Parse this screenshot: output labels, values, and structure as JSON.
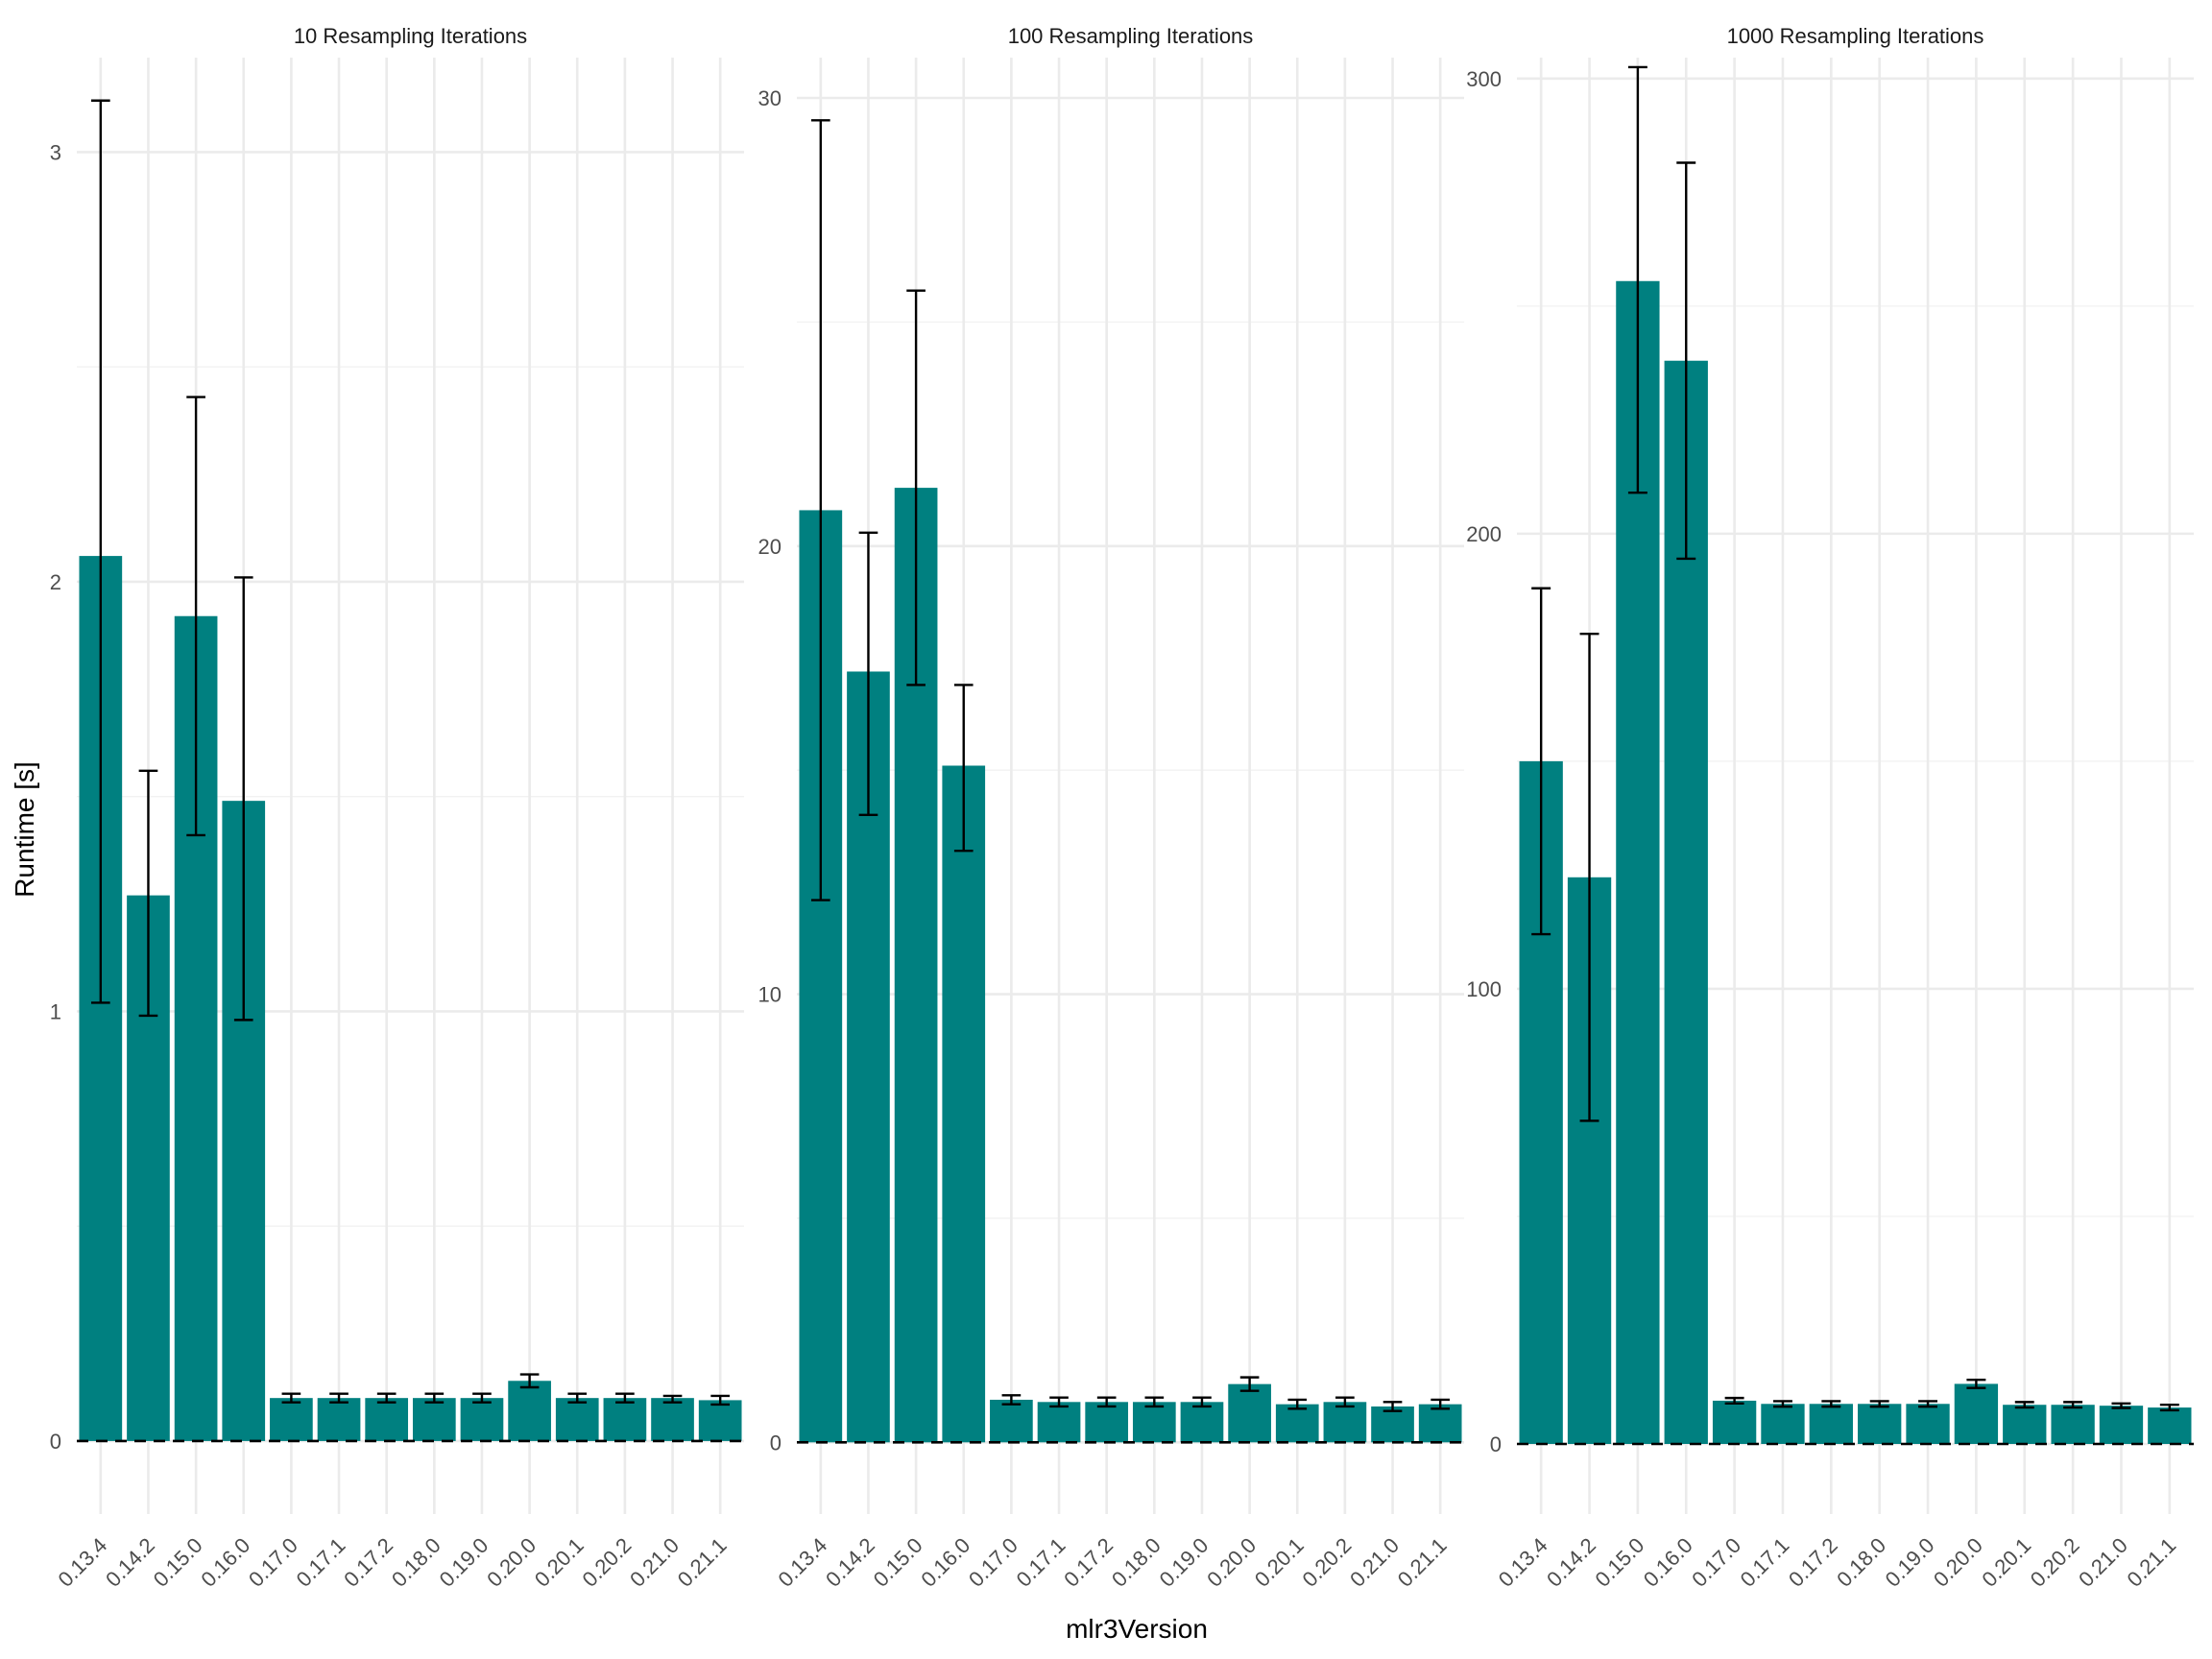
{
  "chart_data": {
    "type": "bar",
    "xlabel": "mlr3Version",
    "ylabel": "Runtime [s]",
    "reference_line": 0,
    "bar_color": "#008080",
    "grid": true,
    "categories": [
      "0.13.4",
      "0.14.2",
      "0.15.0",
      "0.16.0",
      "0.17.0",
      "0.17.1",
      "0.17.2",
      "0.18.0",
      "0.19.0",
      "0.20.0",
      "0.20.1",
      "0.20.2",
      "0.21.0",
      "0.21.1"
    ],
    "facets": [
      {
        "title": "10 Resampling Iterations",
        "ylim": [
          -0.17,
          3.22
        ],
        "yticks": [
          0,
          1,
          2,
          3
        ],
        "values": [
          2.06,
          1.27,
          1.92,
          1.49,
          0.1,
          0.1,
          0.1,
          0.1,
          0.1,
          0.14,
          0.1,
          0.1,
          0.1,
          0.095
        ],
        "err_low": [
          1.02,
          0.99,
          1.41,
          0.98,
          0.09,
          0.09,
          0.09,
          0.09,
          0.09,
          0.125,
          0.09,
          0.09,
          0.09,
          0.085
        ],
        "err_high": [
          3.12,
          1.56,
          2.43,
          2.01,
          0.11,
          0.11,
          0.11,
          0.11,
          0.11,
          0.155,
          0.11,
          0.11,
          0.105,
          0.105
        ]
      },
      {
        "title": "100 Resampling Iterations",
        "ylim": [
          -1.6,
          30.9
        ],
        "yticks": [
          0,
          10,
          20,
          30
        ],
        "values": [
          20.8,
          17.2,
          21.3,
          15.1,
          0.95,
          0.9,
          0.9,
          0.9,
          0.9,
          1.3,
          0.85,
          0.9,
          0.8,
          0.85
        ],
        "err_low": [
          12.1,
          14.0,
          16.9,
          13.2,
          0.85,
          0.8,
          0.8,
          0.8,
          0.8,
          1.15,
          0.75,
          0.8,
          0.7,
          0.75
        ],
        "err_high": [
          29.5,
          20.3,
          25.7,
          16.9,
          1.05,
          1.0,
          1.0,
          1.0,
          1.0,
          1.45,
          0.95,
          1.0,
          0.9,
          0.95
        ]
      },
      {
        "title": "1000 Resampling Iterations",
        "ylim": [
          -15.4,
          304.6
        ],
        "yticks": [
          0,
          100,
          200,
          300
        ],
        "values": [
          150,
          124.5,
          255.5,
          238,
          9.5,
          8.8,
          8.8,
          8.8,
          8.8,
          13.2,
          8.6,
          8.6,
          8.4,
          8.0
        ],
        "err_low": [
          112,
          71,
          209,
          194.5,
          8.9,
          8.2,
          8.2,
          8.2,
          8.2,
          12.3,
          8.0,
          8.0,
          7.9,
          7.4
        ],
        "err_high": [
          188,
          178,
          302.5,
          281.5,
          10.1,
          9.4,
          9.4,
          9.4,
          9.4,
          14.1,
          9.2,
          9.2,
          8.9,
          8.6
        ]
      }
    ]
  }
}
